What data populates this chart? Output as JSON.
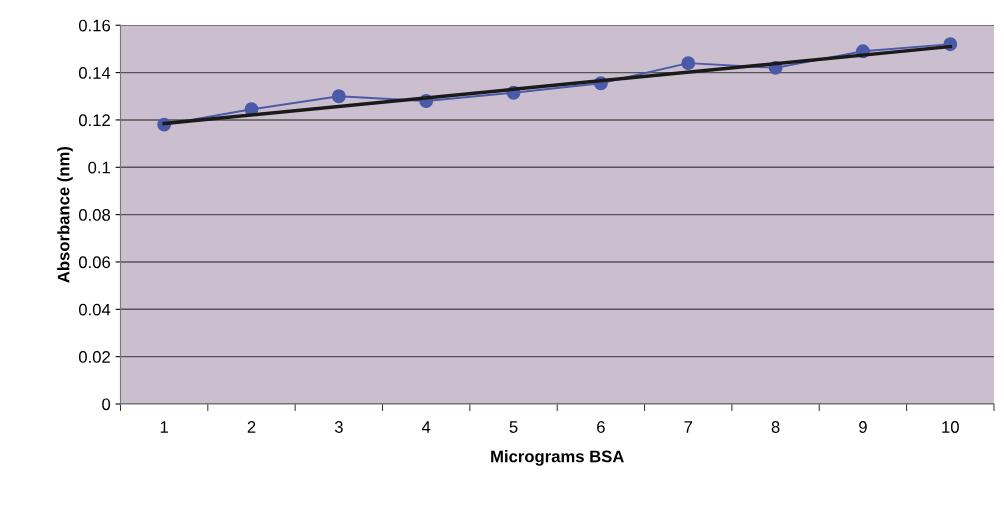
{
  "chart_data": {
    "type": "line",
    "xlabel": "Micrograms BSA",
    "ylabel": "Absorbance (nm)",
    "categories": [
      "1",
      "2",
      "3",
      "4",
      "5",
      "6",
      "7",
      "8",
      "9",
      "10"
    ],
    "series": [
      {
        "color": "#4a5aa8",
        "marker": "circle",
        "values": [
          0.118,
          0.1245,
          0.13,
          0.128,
          0.1315,
          0.1355,
          0.144,
          0.142,
          0.149,
          0.152
        ]
      },
      {
        "color": "#1a1a1a",
        "marker": "none",
        "x": [
          "1",
          "10"
        ],
        "values": [
          0.1185,
          0.151
        ]
      }
    ],
    "ylim": [
      0,
      0.16
    ],
    "yticks": [
      0,
      0.02,
      0.04,
      0.06,
      0.08,
      0.1,
      0.12,
      0.14,
      0.16
    ],
    "grid": "y",
    "legend": false,
    "line_style": "solid"
  }
}
